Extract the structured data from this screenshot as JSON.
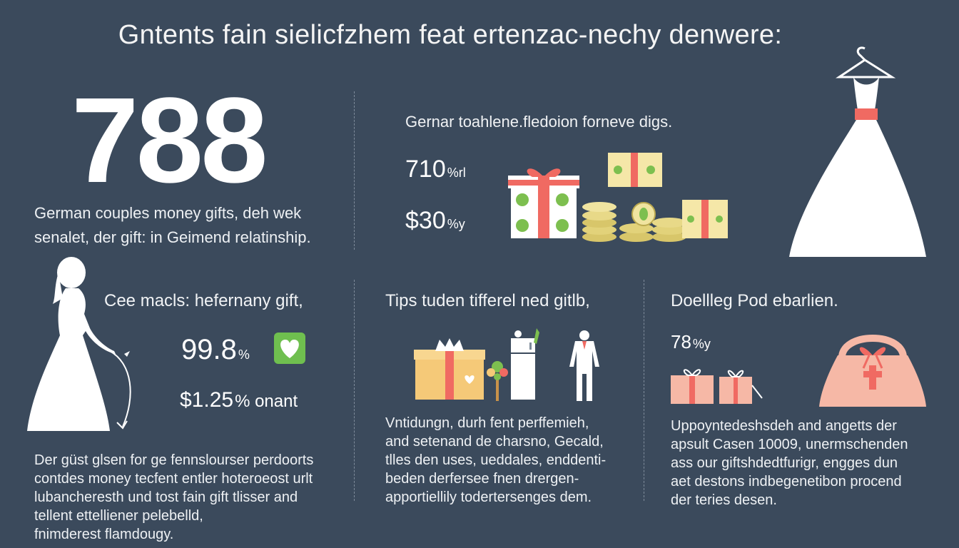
{
  "title": "Gntents fain sielicfzhem feat ertenzac-nechy denwere:",
  "hero": {
    "number": "788",
    "caption": [
      "German couples money gifts, deh wek",
      "senalet, der gift: in Geimend relatinship."
    ]
  },
  "panel_top_right": {
    "heading": "Gernar toahlene.fledoion forneve digs.",
    "stat1": {
      "value": "710",
      "unit": "%rl"
    },
    "stat2": {
      "value": "$30",
      "unit": "%y"
    }
  },
  "panel_left": {
    "heading": "Cee macls: hefernany gift,",
    "stat1": {
      "value": "99.8",
      "unit": "%"
    },
    "stat2": {
      "value": "$1.25",
      "unit": "% onant"
    },
    "body": [
      "Der güst glsen for ge fennslourser perdoorts",
      "contdes money tecfent entler hoteroeost urlt",
      "lubancheresth und tost fain gift tlisser and",
      "tellent ettelliener pelebelld,",
      "fnimderest flamdougy."
    ]
  },
  "panel_middle": {
    "heading": "Tips tuden tifferel ned gitlb,",
    "body": [
      "Vntidungn, durh fent perffemieh,",
      "and setenand de charsno, Gecald,",
      "tlles den uses, ueddales, enddenti-",
      "beden derfersee fnen drergen-",
      "apportiellily todertersenges dem."
    ]
  },
  "panel_right": {
    "heading": "Doellleg Pod ebarlien.",
    "stat1": {
      "value": "78",
      "unit": "%y"
    },
    "body": [
      "Uppoyntedeshsdeh and angetts der",
      "apsult Casen 10009, unermschenden",
      "ass our giftshdedtfurigr, engges dun",
      "aet destons indbegenetibon procend",
      "der teries desen."
    ]
  },
  "icons": [
    "wedding-dress-icon",
    "gift-box-icon",
    "banknote-icon",
    "coin-stack-icon",
    "bride-silhouette-icon",
    "heart-badge-icon",
    "money-tree-icon",
    "refrigerator-icon",
    "suit-icon",
    "small-gift-icon",
    "wedding-bag-icon"
  ],
  "colors": {
    "background": "#3b4a5c",
    "accent_red": "#f06a62",
    "gift_green": "#7dbf4f",
    "gift_yellow": "#f5e7a8",
    "pink": "#f6b8a6",
    "gold": "#e2d27a"
  }
}
